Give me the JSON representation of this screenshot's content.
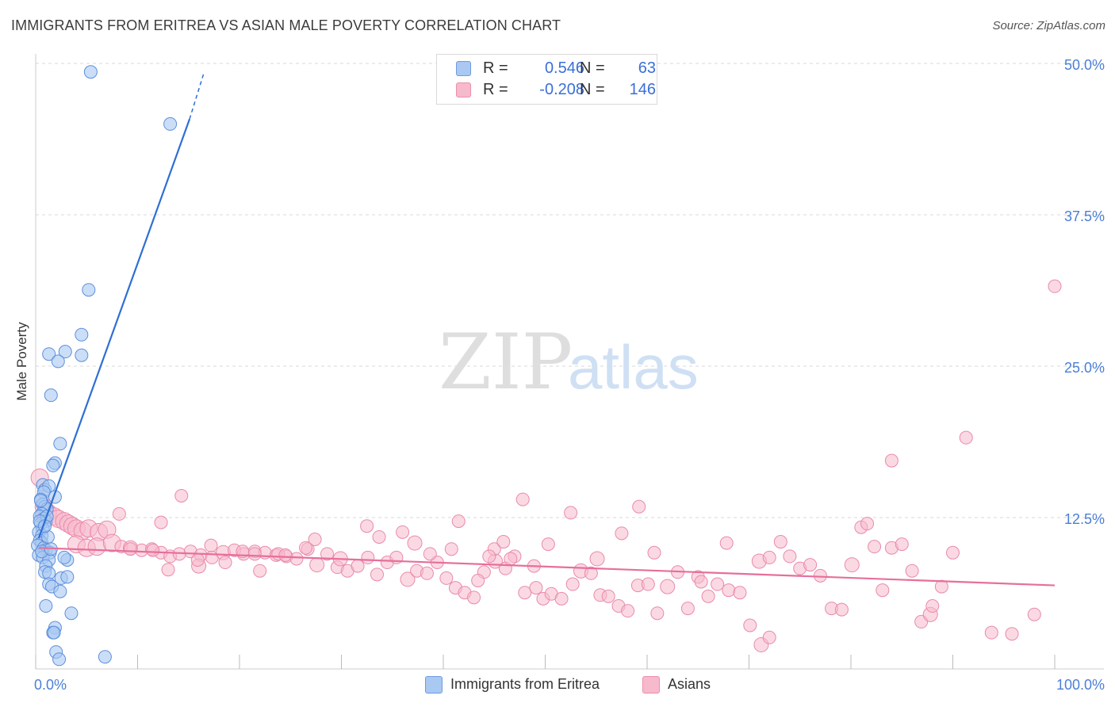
{
  "title": "IMMIGRANTS FROM ERITREA VS ASIAN MALE POVERTY CORRELATION CHART",
  "source": "Source: ZipAtlas.com",
  "watermark": {
    "zip": "ZIP",
    "atlas": "atlas"
  },
  "legend": {
    "r_label": "R =",
    "n_label": "N =",
    "rows": [
      {
        "r": "0.546",
        "n": "63",
        "fill": "#a9c8f2",
        "stroke": "#6f9be0"
      },
      {
        "r": "-0.208",
        "n": "146",
        "fill": "#f7b9cc",
        "stroke": "#ec8fae"
      }
    ]
  },
  "colors": {
    "blue_fill": "#a9c8f2",
    "blue_stroke": "#5c8fdc",
    "blue_line": "#2e6fd4",
    "pink_fill": "#f7b9cc",
    "pink_stroke": "#e98aac",
    "pink_line": "#e66f9b",
    "tick_text": "#4a7fd6",
    "grid": "#d9d9d9"
  },
  "chart_data": {
    "type": "scatter",
    "title": "IMMIGRANTS FROM ERITREA VS ASIAN MALE POVERTY CORRELATION CHART",
    "xlabel": "",
    "ylabel": "Male Poverty",
    "xlim": [
      0,
      100
    ],
    "ylim": [
      0,
      50
    ],
    "x_tick_labels": [
      "0.0%",
      "100.0%"
    ],
    "y_ticks": [
      12.5,
      25.0,
      37.5,
      50.0
    ],
    "y_tick_labels": [
      "12.5%",
      "25.0%",
      "37.5%",
      "50.0%"
    ],
    "grid": true,
    "legend_position": "top-center",
    "series": [
      {
        "name": "Immigrants from Eritrea",
        "r": 0.546,
        "n": 63,
        "trend": {
          "x0": 0.3,
          "y0": 10.8,
          "x1": 15.1,
          "y1": 45.4,
          "dash_to_x": 16.5,
          "dash_to_y": 49.2
        },
        "points": [
          [
            5.4,
            49.3
          ],
          [
            13.2,
            45.0
          ],
          [
            5.2,
            31.3
          ],
          [
            4.5,
            27.6
          ],
          [
            1.3,
            26.0
          ],
          [
            2.9,
            26.2
          ],
          [
            2.2,
            25.4
          ],
          [
            4.5,
            25.9
          ],
          [
            1.5,
            22.6
          ],
          [
            2.4,
            18.6
          ],
          [
            1.9,
            17.0
          ],
          [
            1.7,
            16.8
          ],
          [
            0.7,
            15.2
          ],
          [
            0.9,
            14.8
          ],
          [
            1.3,
            15.1
          ],
          [
            0.8,
            14.6
          ],
          [
            1.9,
            14.2
          ],
          [
            0.5,
            14.0
          ],
          [
            0.7,
            13.6
          ],
          [
            0.9,
            13.4
          ],
          [
            1.1,
            13.2
          ],
          [
            0.6,
            12.8
          ],
          [
            0.4,
            12.6
          ],
          [
            0.8,
            12.4
          ],
          [
            1.0,
            12.2
          ],
          [
            0.5,
            12.0
          ],
          [
            0.7,
            11.6
          ],
          [
            0.3,
            11.3
          ],
          [
            0.6,
            11.0
          ],
          [
            0.4,
            10.6
          ],
          [
            0.6,
            10.4
          ],
          [
            0.2,
            10.2
          ],
          [
            0.8,
            10.0
          ],
          [
            1.0,
            9.8
          ],
          [
            1.4,
            9.6
          ],
          [
            0.3,
            9.4
          ],
          [
            0.7,
            9.2
          ],
          [
            1.3,
            9.0
          ],
          [
            3.1,
            9.0
          ],
          [
            1.0,
            8.5
          ],
          [
            0.9,
            8.0
          ],
          [
            1.3,
            7.9
          ],
          [
            2.5,
            7.5
          ],
          [
            3.1,
            7.6
          ],
          [
            1.3,
            7.0
          ],
          [
            1.6,
            6.8
          ],
          [
            2.4,
            6.4
          ],
          [
            1.0,
            5.2
          ],
          [
            3.5,
            4.6
          ],
          [
            1.9,
            3.4
          ],
          [
            1.7,
            3.0
          ],
          [
            1.8,
            3.0
          ],
          [
            2.0,
            1.4
          ],
          [
            2.3,
            0.8
          ],
          [
            6.8,
            1.0
          ],
          [
            0.6,
            9.7
          ],
          [
            1.1,
            12.6
          ],
          [
            0.5,
            13.9
          ],
          [
            1.5,
            9.9
          ],
          [
            0.4,
            12.2
          ],
          [
            2.8,
            9.2
          ],
          [
            1.2,
            10.9
          ],
          [
            0.9,
            11.8
          ]
        ]
      },
      {
        "name": "Asians",
        "r": -0.208,
        "n": 146,
        "trend": {
          "x0": 0.3,
          "y0": 10.0,
          "x1": 100,
          "y1": 6.9
        },
        "points": [
          [
            0.4,
            15.8
          ],
          [
            0.8,
            13.4
          ],
          [
            1.2,
            12.9
          ],
          [
            1.8,
            12.6
          ],
          [
            2.2,
            12.4
          ],
          [
            2.8,
            12.2
          ],
          [
            3.2,
            12.0
          ],
          [
            3.6,
            11.8
          ],
          [
            4.0,
            11.6
          ],
          [
            4.6,
            11.4
          ],
          [
            5.2,
            11.6
          ],
          [
            6.2,
            11.3
          ],
          [
            7.0,
            11.5
          ],
          [
            4.0,
            10.3
          ],
          [
            5.0,
            10.0
          ],
          [
            6.0,
            10.1
          ],
          [
            7.5,
            10.4
          ],
          [
            8.4,
            10.1
          ],
          [
            9.3,
            10.0
          ],
          [
            10.4,
            9.8
          ],
          [
            11.4,
            9.9
          ],
          [
            12.3,
            9.6
          ],
          [
            13.2,
            9.3
          ],
          [
            14.1,
            9.5
          ],
          [
            15.2,
            9.7
          ],
          [
            16.2,
            9.4
          ],
          [
            17.3,
            9.2
          ],
          [
            18.4,
            9.6
          ],
          [
            19.5,
            9.8
          ],
          [
            20.4,
            9.5
          ],
          [
            21.5,
            9.7
          ],
          [
            22.5,
            9.6
          ],
          [
            23.6,
            9.4
          ],
          [
            24.6,
            9.3
          ],
          [
            25.6,
            9.1
          ],
          [
            26.7,
            9.9
          ],
          [
            27.6,
            8.6
          ],
          [
            28.6,
            9.5
          ],
          [
            29.6,
            8.4
          ],
          [
            30.6,
            8.1
          ],
          [
            31.6,
            8.5
          ],
          [
            32.6,
            9.2
          ],
          [
            33.5,
            7.8
          ],
          [
            34.5,
            8.8
          ],
          [
            35.4,
            9.2
          ],
          [
            36.5,
            7.4
          ],
          [
            37.4,
            8.1
          ],
          [
            38.4,
            7.9
          ],
          [
            39.4,
            8.8
          ],
          [
            40.3,
            7.5
          ],
          [
            41.2,
            6.7
          ],
          [
            42.1,
            6.3
          ],
          [
            43.0,
            5.9
          ],
          [
            44.0,
            8.0
          ],
          [
            45.1,
            8.9
          ],
          [
            46.1,
            8.3
          ],
          [
            47.0,
            9.3
          ],
          [
            48.0,
            6.3
          ],
          [
            49.1,
            6.7
          ],
          [
            49.8,
            5.8
          ],
          [
            50.6,
            6.2
          ],
          [
            51.6,
            5.8
          ],
          [
            52.7,
            7.0
          ],
          [
            53.5,
            8.1
          ],
          [
            54.5,
            7.9
          ],
          [
            55.4,
            6.1
          ],
          [
            56.2,
            6.0
          ],
          [
            57.2,
            5.2
          ],
          [
            58.1,
            4.8
          ],
          [
            59.1,
            6.9
          ],
          [
            60.1,
            7.0
          ],
          [
            61.0,
            4.6
          ],
          [
            62.0,
            6.8
          ],
          [
            63.0,
            8.0
          ],
          [
            64.0,
            5.0
          ],
          [
            65.0,
            7.6
          ],
          [
            66.0,
            6.0
          ],
          [
            66.9,
            7.0
          ],
          [
            68.0,
            6.5
          ],
          [
            69.1,
            6.3
          ],
          [
            70.1,
            3.6
          ],
          [
            71.0,
            8.9
          ],
          [
            72.0,
            9.2
          ],
          [
            73.1,
            10.5
          ],
          [
            74.0,
            9.3
          ],
          [
            75.0,
            8.3
          ],
          [
            76.0,
            8.6
          ],
          [
            77.0,
            7.7
          ],
          [
            78.1,
            5.0
          ],
          [
            79.1,
            4.9
          ],
          [
            80.1,
            8.6
          ],
          [
            81.0,
            11.7
          ],
          [
            81.6,
            12.0
          ],
          [
            82.3,
            10.1
          ],
          [
            83.1,
            6.5
          ],
          [
            84.0,
            10.0
          ],
          [
            85.0,
            10.3
          ],
          [
            86.0,
            8.1
          ],
          [
            86.9,
            3.9
          ],
          [
            87.8,
            4.5
          ],
          [
            88.0,
            5.2
          ],
          [
            88.9,
            6.8
          ],
          [
            90.0,
            9.6
          ],
          [
            91.3,
            19.1
          ],
          [
            93.8,
            3.0
          ],
          [
            95.8,
            2.9
          ],
          [
            98.0,
            4.5
          ],
          [
            84.0,
            17.2
          ],
          [
            71.2,
            2.0
          ],
          [
            72.0,
            2.6
          ],
          [
            100.0,
            31.6
          ],
          [
            14.3,
            14.3
          ],
          [
            8.2,
            12.8
          ],
          [
            12.3,
            12.1
          ],
          [
            20.3,
            9.7
          ],
          [
            27.4,
            10.7
          ],
          [
            32.5,
            11.8
          ],
          [
            37.2,
            10.4
          ],
          [
            40.8,
            9.9
          ],
          [
            41.5,
            12.2
          ],
          [
            45.0,
            9.9
          ],
          [
            46.6,
            9.1
          ],
          [
            47.8,
            14.0
          ],
          [
            48.9,
            8.5
          ],
          [
            50.3,
            10.3
          ],
          [
            52.5,
            12.9
          ],
          [
            55.1,
            9.1
          ],
          [
            57.5,
            11.2
          ],
          [
            59.2,
            13.4
          ],
          [
            60.7,
            9.6
          ],
          [
            65.3,
            7.2
          ],
          [
            67.8,
            10.4
          ],
          [
            23.8,
            9.5
          ],
          [
            24.5,
            9.4
          ],
          [
            21.5,
            9.5
          ],
          [
            16.0,
            8.5
          ],
          [
            11.5,
            9.8
          ],
          [
            9.3,
            9.9
          ],
          [
            13.0,
            8.2
          ],
          [
            15.9,
            9.0
          ],
          [
            17.2,
            10.2
          ],
          [
            18.6,
            8.8
          ],
          [
            22.0,
            8.1
          ],
          [
            26.5,
            10.0
          ],
          [
            29.9,
            9.1
          ],
          [
            33.7,
            10.9
          ],
          [
            36.0,
            11.3
          ],
          [
            38.7,
            9.5
          ],
          [
            43.4,
            7.3
          ],
          [
            44.5,
            9.3
          ],
          [
            45.9,
            10.5
          ]
        ]
      }
    ]
  },
  "bottom_legend": [
    "Immigrants from Eritrea",
    "Asians"
  ]
}
